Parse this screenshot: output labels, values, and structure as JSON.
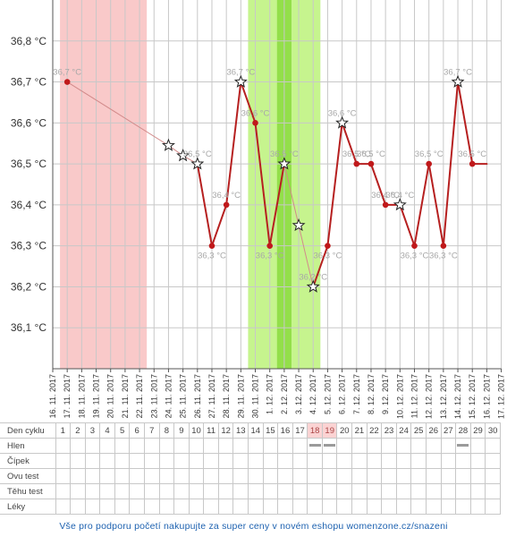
{
  "chart_data": {
    "type": "line",
    "y_unit": "°C",
    "ylim": [
      36.0,
      36.9
    ],
    "y_ticks": [
      "36,1 °C",
      "36,2 °C",
      "36,3 °C",
      "36,4 °C",
      "36,5 °C",
      "36,6 °C",
      "36,7 °C",
      "36,8 °C"
    ],
    "x": [
      "16. 11. 2017",
      "17. 11. 2017",
      "18. 11. 2017",
      "19. 11. 2017",
      "20. 11. 2017",
      "21. 11. 2017",
      "22. 11. 2017",
      "23. 11. 2017",
      "24. 11. 2017",
      "25. 11. 2017",
      "26. 11. 2017",
      "27. 11. 2017",
      "28. 11. 2017",
      "29. 11. 2017",
      "30. 11. 2017",
      "1. 12. 2017",
      "2. 12. 2017",
      "3. 12. 2017",
      "4. 12. 2017",
      "5. 12. 2017",
      "6. 12. 2017",
      "7. 12. 2017",
      "8. 12. 2017",
      "9. 12. 2017",
      "10. 12. 2017",
      "11. 12. 2017",
      "12. 12. 2017",
      "13. 12. 2017",
      "14. 12. 2017",
      "15. 12. 2017",
      "16. 12. 2017",
      "17. 12. 2017"
    ],
    "grid": true,
    "series": [
      {
        "values": [
          {
            "x": 1,
            "y": 36.7,
            "label": "36,7 °C",
            "marker": "dot"
          },
          {
            "x": 8,
            "y": 36.545,
            "marker": "star-open"
          },
          {
            "x": 9,
            "y": 36.52,
            "marker": "star-open"
          },
          {
            "x": 10,
            "y": 36.5,
            "label": "36,5 °C",
            "marker": "star"
          },
          {
            "x": 11,
            "y": 36.3,
            "label": "36,3 °C",
            "marker": "dot"
          },
          {
            "x": 12,
            "y": 36.4,
            "label": "36,4 °C",
            "marker": "dot"
          },
          {
            "x": 13,
            "y": 36.7,
            "label": "36,7 °C",
            "marker": "star"
          },
          {
            "x": 14,
            "y": 36.6,
            "label": "36,6 °C",
            "marker": "dot"
          },
          {
            "x": 15,
            "y": 36.3,
            "label": "36,3 °C",
            "marker": "dot"
          },
          {
            "x": 16,
            "y": 36.5,
            "label": "36,5 °C",
            "marker": "star"
          },
          {
            "x": 17,
            "y": 36.35,
            "marker": "star-open"
          },
          {
            "x": 18,
            "y": 36.2,
            "label": "36,2 °C",
            "marker": "star"
          },
          {
            "x": 19,
            "y": 36.3,
            "label": "36,3 °C",
            "marker": "dot"
          },
          {
            "x": 20,
            "y": 36.6,
            "label": "36,6 °C",
            "marker": "star"
          },
          {
            "x": 21,
            "y": 36.5,
            "label": "36,5 °C",
            "marker": "dot"
          },
          {
            "x": 22,
            "y": 36.5,
            "label": "36,5 °C",
            "marker": "dot"
          },
          {
            "x": 23,
            "y": 36.4,
            "label": "36,4 °C",
            "marker": "dot"
          },
          {
            "x": 24,
            "y": 36.4,
            "label": "36,4 °C",
            "marker": "star"
          },
          {
            "x": 25,
            "y": 36.3,
            "label": "36,3 °C",
            "marker": "dot"
          },
          {
            "x": 26,
            "y": 36.5,
            "label": "36,5 °C",
            "marker": "dot"
          },
          {
            "x": 27,
            "y": 36.3,
            "label": "36,3 °C",
            "marker": "dot"
          },
          {
            "x": 28,
            "y": 36.7,
            "label": "36,7 °C",
            "marker": "star"
          },
          {
            "x": 29,
            "y": 36.5,
            "label": "36,5 °C",
            "marker": "dot"
          },
          {
            "x": 30,
            "y": 36.5,
            "marker": "none"
          }
        ]
      }
    ],
    "bands": [
      {
        "from": 0.5,
        "to": 6.5,
        "color": "#f9c9c9",
        "kind": "menstruation"
      },
      {
        "from": 13.5,
        "to": 18.5,
        "color": "#c6f48e",
        "kind": "fertile"
      },
      {
        "from": 15.5,
        "to": 16.5,
        "color": "#93df4a",
        "kind": "ovulation"
      }
    ],
    "colors": {
      "line": "#b62020",
      "faded_line": "#d28a8a",
      "dot": "#c0191b",
      "grid": "#c8c8c8",
      "axis": "#555555"
    }
  },
  "table": {
    "cycle_label": "Den cyklu",
    "days": [
      "1",
      "2",
      "3",
      "4",
      "5",
      "6",
      "7",
      "8",
      "9",
      "10",
      "11",
      "12",
      "13",
      "14",
      "15",
      "16",
      "17",
      "18",
      "19",
      "20",
      "21",
      "22",
      "23",
      "24",
      "25",
      "26",
      "27",
      "28",
      "29",
      "30"
    ],
    "highlight_days": [
      "18",
      "19"
    ],
    "rows": [
      {
        "label": "Hlen",
        "marks": [
          "18",
          "19",
          "28"
        ]
      },
      {
        "label": "Čípek",
        "marks": []
      },
      {
        "label": "Ovu test",
        "marks": []
      },
      {
        "label": "Těhu test",
        "marks": []
      },
      {
        "label": "Léky",
        "marks": []
      }
    ]
  },
  "footer": "Vše pro podporu početí nakupujte za super ceny v novém eshopu womenzone.cz/snazeni"
}
